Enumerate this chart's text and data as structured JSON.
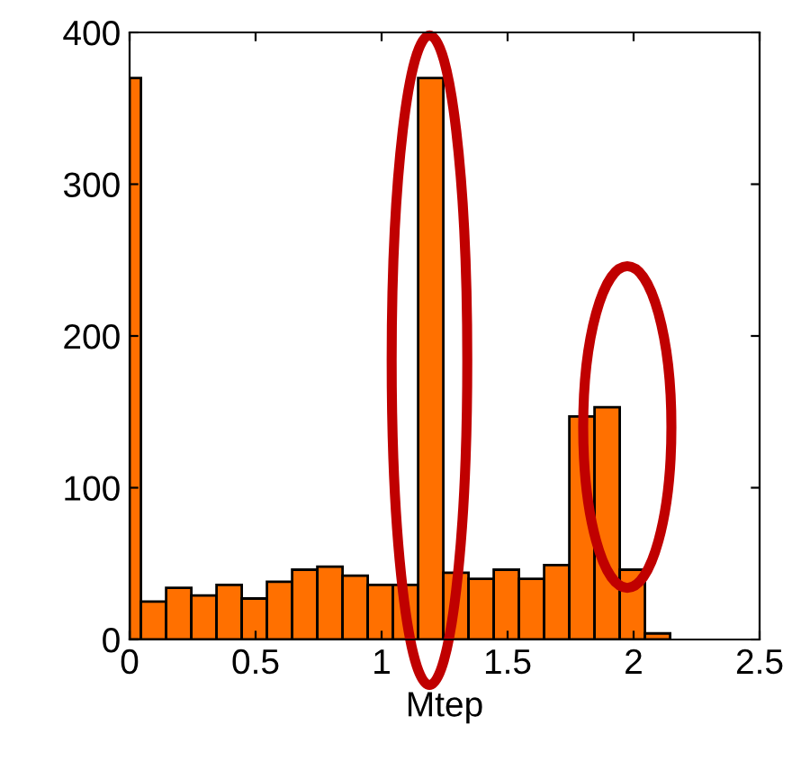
{
  "chart_data": {
    "type": "histogram",
    "xlabel": "Mtep",
    "bins": [
      0,
      0.045,
      0.145,
      0.245,
      0.345,
      0.445,
      0.545,
      0.645,
      0.745,
      0.845,
      0.945,
      1.045,
      1.145,
      1.245,
      1.345,
      1.445,
      1.545,
      1.645,
      1.745,
      1.845,
      1.945,
      2.045,
      2.145
    ],
    "values": [
      370,
      25,
      34,
      29,
      36,
      27,
      38,
      46,
      48,
      42,
      36,
      36,
      370,
      44,
      40,
      46,
      40,
      49,
      147,
      153,
      46,
      4
    ],
    "color": "#ff7000",
    "xlim": [
      0,
      2.5
    ],
    "xticks": [
      0,
      0.5,
      1,
      1.5,
      2,
      2.5
    ],
    "ylim": [
      0,
      400
    ],
    "yticks": [
      0,
      100,
      200,
      300,
      400
    ],
    "grid": false
  }
}
